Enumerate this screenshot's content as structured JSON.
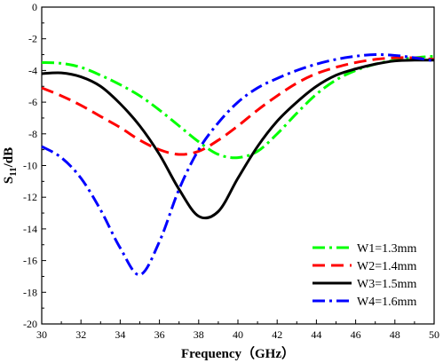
{
  "chart_data": {
    "type": "line",
    "title": "",
    "xlabel": "Frequency（GHz）",
    "ylabel_main": "S",
    "ylabel_sub": "11",
    "ylabel_unit": "/dB",
    "xlim": [
      30,
      50
    ],
    "ylim": [
      -20,
      0
    ],
    "xticks": [
      30,
      32,
      34,
      36,
      38,
      40,
      42,
      44,
      46,
      48,
      50
    ],
    "yticks": [
      0,
      -2,
      -4,
      -6,
      -8,
      -10,
      -12,
      -14,
      -16,
      -18,
      -20
    ],
    "grid": false,
    "legend_position": "bottom-right",
    "x": [
      30,
      31,
      32,
      33,
      34,
      35,
      36,
      37,
      38,
      39,
      40,
      41,
      42,
      43,
      44,
      45,
      46,
      47,
      48,
      49,
      50
    ],
    "series": [
      {
        "name": "W1=1.3mm",
        "color": "#00ff00",
        "dash": "dashdot",
        "values": [
          -3.5,
          -3.55,
          -3.8,
          -4.3,
          -4.9,
          -5.6,
          -6.5,
          -7.5,
          -8.5,
          -9.3,
          -9.5,
          -9.1,
          -8.0,
          -6.7,
          -5.5,
          -4.6,
          -4.0,
          -3.6,
          -3.35,
          -3.2,
          -3.1
        ]
      },
      {
        "name": "W2=1.4mm",
        "color": "#ff0000",
        "dash": "dash",
        "values": [
          -5.1,
          -5.6,
          -6.2,
          -6.9,
          -7.6,
          -8.4,
          -9.0,
          -9.3,
          -9.1,
          -8.4,
          -7.5,
          -6.5,
          -5.6,
          -4.8,
          -4.2,
          -3.8,
          -3.5,
          -3.3,
          -3.2,
          -3.2,
          -3.3
        ]
      },
      {
        "name": "W3=1.5mm",
        "color": "#000000",
        "dash": "solid",
        "values": [
          -4.2,
          -4.15,
          -4.4,
          -5.0,
          -6.1,
          -7.5,
          -9.3,
          -11.5,
          -13.2,
          -12.9,
          -10.8,
          -8.8,
          -7.2,
          -6.0,
          -5.0,
          -4.3,
          -3.9,
          -3.6,
          -3.4,
          -3.35,
          -3.35
        ]
      },
      {
        "name": "W4=1.6mm",
        "color": "#0000ff",
        "dash": "dashdot",
        "values": [
          -8.8,
          -9.5,
          -10.8,
          -12.8,
          -15.2,
          -16.9,
          -14.8,
          -11.5,
          -9.0,
          -7.3,
          -6.0,
          -5.1,
          -4.5,
          -4.0,
          -3.6,
          -3.3,
          -3.1,
          -3.0,
          -3.05,
          -3.2,
          -3.4
        ]
      }
    ]
  }
}
